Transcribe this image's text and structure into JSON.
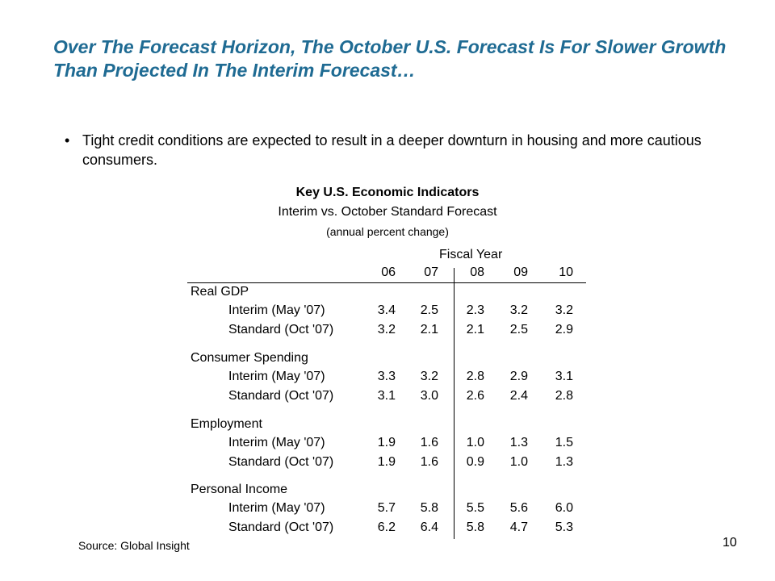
{
  "slide": {
    "title": "Over The Forecast Horizon, The October U.S. Forecast Is For Slower Growth Than Projected In The Interim Forecast…",
    "bullet": "Tight credit conditions are expected to result in a deeper downturn in housing and more cautious consumers.",
    "bullet_marker": "•",
    "source": "Source: Global Insight",
    "page_number": "10"
  },
  "table": {
    "title": "Key U.S. Economic Indicators",
    "subtitle": "Interim vs. October Standard Forecast",
    "units": "(annual percent change)",
    "fiscal_year_label": "Fiscal Year",
    "columns": [
      "06",
      "07",
      "08",
      "09",
      "10"
    ],
    "groups": [
      {
        "name": "Real GDP",
        "rows": [
          {
            "label": "Interim (May '07)",
            "values": [
              "3.4",
              "2.5",
              "2.3",
              "3.2",
              "3.2"
            ]
          },
          {
            "label": "Standard (Oct '07)",
            "values": [
              "3.2",
              "2.1",
              "2.1",
              "2.5",
              "2.9"
            ]
          }
        ]
      },
      {
        "name": "Consumer Spending",
        "rows": [
          {
            "label": "Interim (May '07)",
            "values": [
              "3.3",
              "3.2",
              "2.8",
              "2.9",
              "3.1"
            ]
          },
          {
            "label": "Standard (Oct '07)",
            "values": [
              "3.1",
              "3.0",
              "2.6",
              "2.4",
              "2.8"
            ]
          }
        ]
      },
      {
        "name": "Employment",
        "rows": [
          {
            "label": "Interim (May '07)",
            "values": [
              "1.9",
              "1.6",
              "1.0",
              "1.3",
              "1.5"
            ]
          },
          {
            "label": "Standard (Oct '07)",
            "values": [
              "1.9",
              "1.6",
              "0.9",
              "1.0",
              "1.3"
            ]
          }
        ]
      },
      {
        "name": "Personal Income",
        "rows": [
          {
            "label": "Interim (May '07)",
            "values": [
              "5.7",
              "5.8",
              "5.5",
              "5.6",
              "6.0"
            ]
          },
          {
            "label": "Standard (Oct '07)",
            "values": [
              "6.2",
              "6.4",
              "5.8",
              "4.7",
              "5.3"
            ]
          }
        ]
      }
    ]
  }
}
